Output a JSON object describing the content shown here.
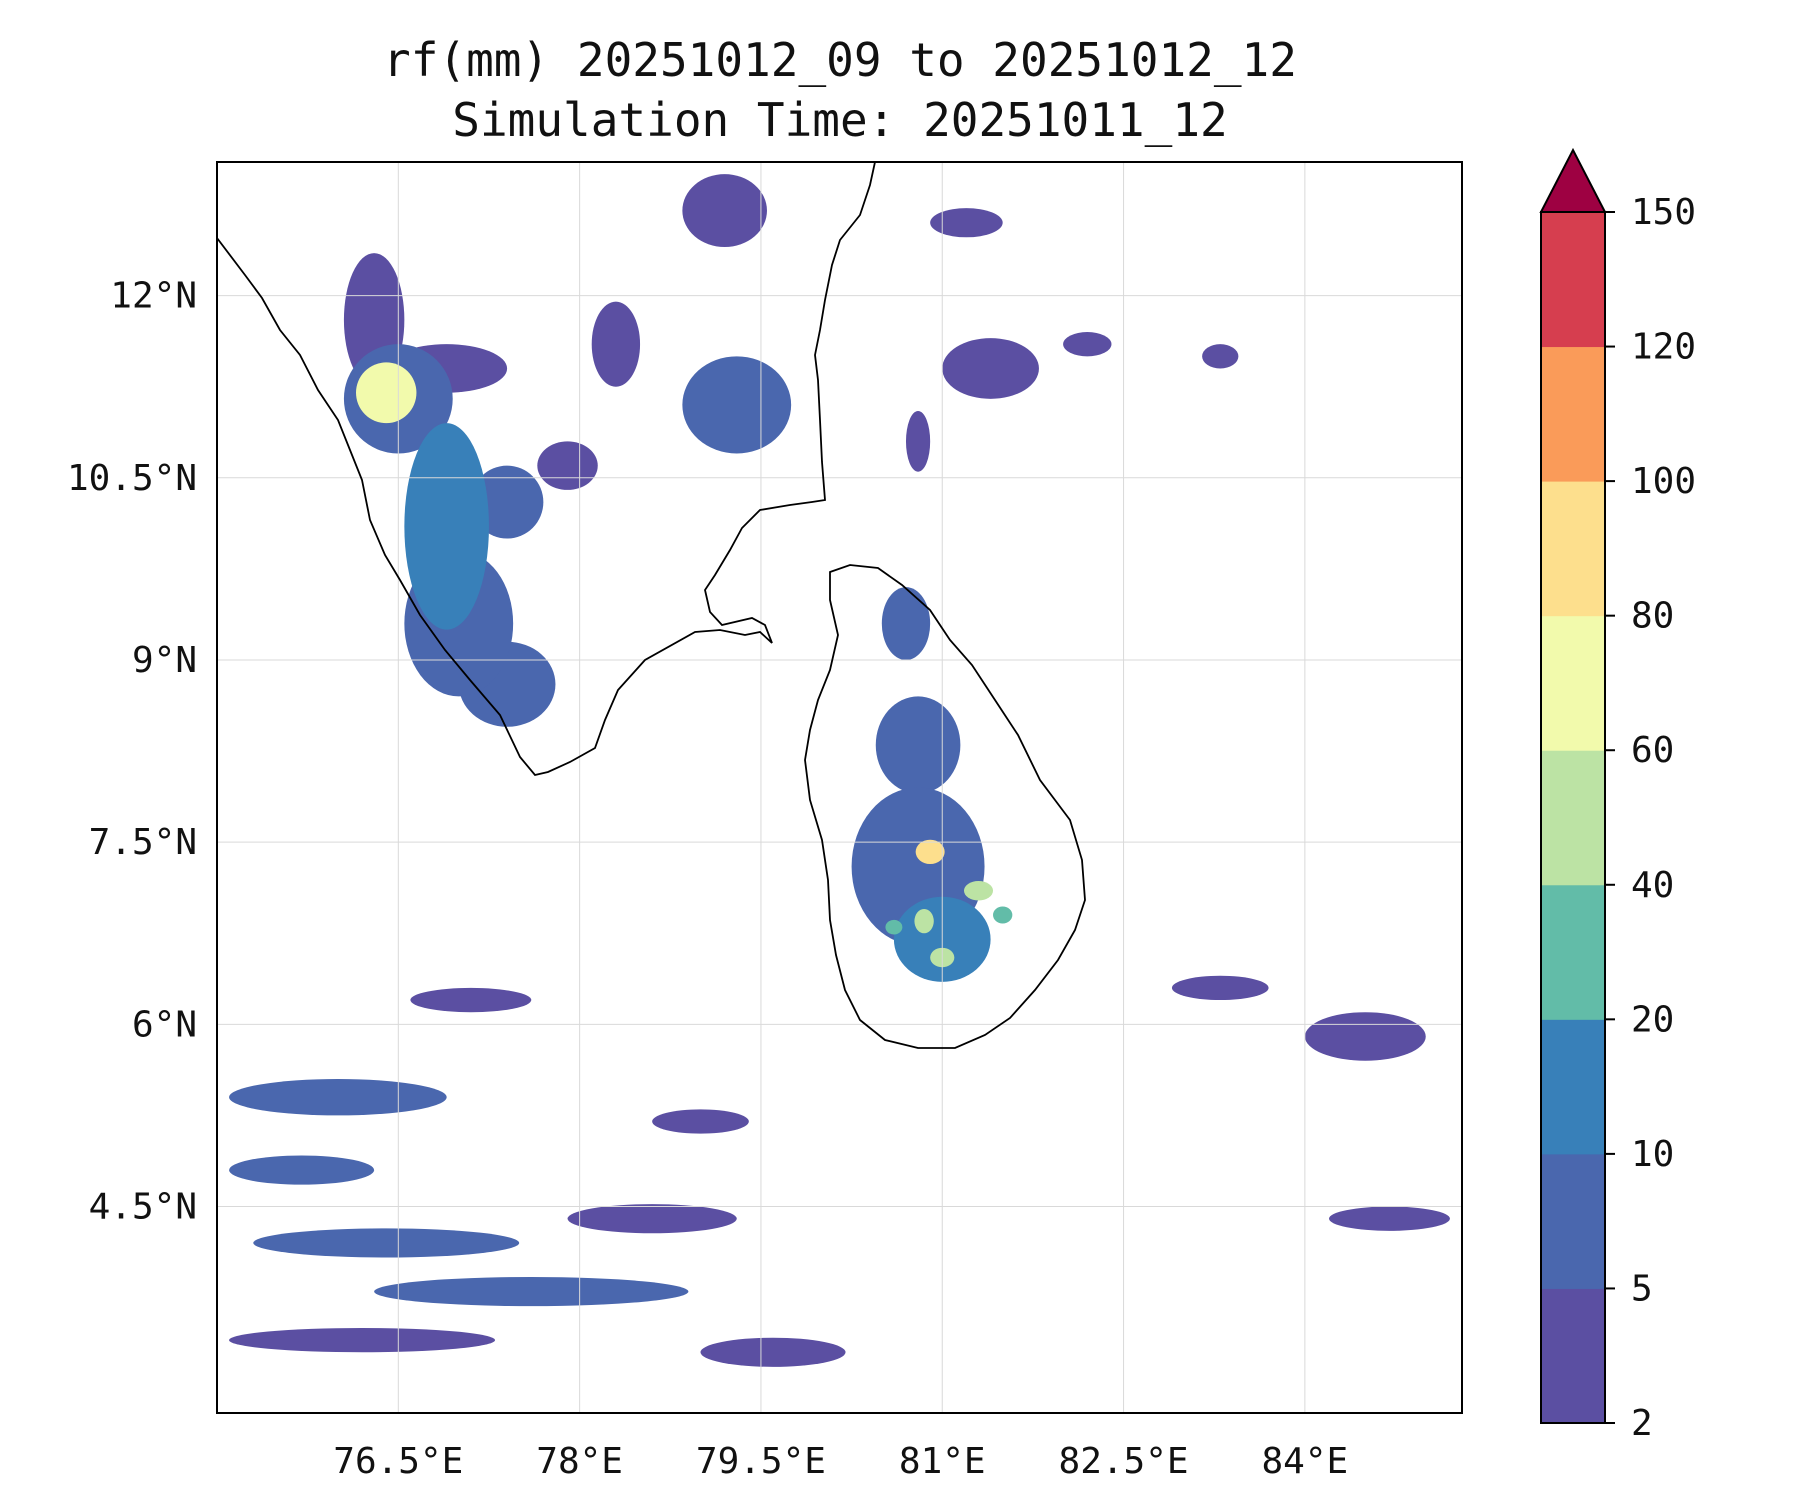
{
  "title": {
    "line1": "rf(mm) 20251012_09 to 20251012_12",
    "line2": "Simulation Time: 20251011_12"
  },
  "chart_data": {
    "type": "heatmap",
    "variable": "rf(mm)",
    "lon_range": [
      75.0,
      85.3
    ],
    "lat_range": [
      2.8,
      13.1
    ],
    "grid": true,
    "x_ticks": [
      {
        "value": 76.5,
        "label": "76.5°E"
      },
      {
        "value": 78.0,
        "label": "78°E"
      },
      {
        "value": 79.5,
        "label": "79.5°E"
      },
      {
        "value": 81.0,
        "label": "81°E"
      },
      {
        "value": 82.5,
        "label": "82.5°E"
      },
      {
        "value": 84.0,
        "label": "84°E"
      }
    ],
    "y_ticks": [
      {
        "value": 12.0,
        "label": "12°N"
      },
      {
        "value": 10.5,
        "label": "10.5°N"
      },
      {
        "value": 9.0,
        "label": "9°N"
      },
      {
        "value": 7.5,
        "label": "7.5°N"
      },
      {
        "value": 6.0,
        "label": "6°N"
      },
      {
        "value": 4.5,
        "label": "4.5°N"
      }
    ],
    "colorbar": {
      "levels": [
        2,
        5,
        10,
        20,
        40,
        60,
        80,
        100,
        120,
        150
      ],
      "labels": [
        "2",
        "5",
        "10",
        "20",
        "40",
        "60",
        "80",
        "100",
        "120",
        "150"
      ],
      "colors": [
        "#5b4fa2",
        "#4a67ae",
        "#3880b9",
        "#62bca8",
        "#bce3a4",
        "#f2faac",
        "#fddf8d",
        "#fa9b59",
        "#d63e4f"
      ],
      "extend_color": "#9e0142",
      "extend": "max"
    },
    "rain_cells": [
      {
        "lon": 76.3,
        "lat": 11.8,
        "rx": 0.25,
        "ry": 0.55,
        "value": 4
      },
      {
        "lon": 76.4,
        "lat": 11.2,
        "rx": 0.25,
        "ry": 0.25,
        "value": 60
      },
      {
        "lon": 76.5,
        "lat": 11.15,
        "rx": 0.45,
        "ry": 0.45,
        "value": 6
      },
      {
        "lon": 76.9,
        "lat": 11.4,
        "rx": 0.5,
        "ry": 0.2,
        "value": 3
      },
      {
        "lon": 76.9,
        "lat": 10.1,
        "rx": 0.35,
        "ry": 0.85,
        "value": 12
      },
      {
        "lon": 77.0,
        "lat": 9.3,
        "rx": 0.45,
        "ry": 0.6,
        "value": 8
      },
      {
        "lon": 77.4,
        "lat": 8.8,
        "rx": 0.4,
        "ry": 0.35,
        "value": 6
      },
      {
        "lon": 77.4,
        "lat": 10.3,
        "rx": 0.3,
        "ry": 0.3,
        "value": 5
      },
      {
        "lon": 77.9,
        "lat": 10.6,
        "rx": 0.25,
        "ry": 0.2,
        "value": 4
      },
      {
        "lon": 78.3,
        "lat": 11.6,
        "rx": 0.2,
        "ry": 0.35,
        "value": 3
      },
      {
        "lon": 79.3,
        "lat": 11.1,
        "rx": 0.45,
        "ry": 0.4,
        "value": 5
      },
      {
        "lon": 79.2,
        "lat": 12.7,
        "rx": 0.35,
        "ry": 0.3,
        "value": 4
      },
      {
        "lon": 81.2,
        "lat": 12.6,
        "rx": 0.3,
        "ry": 0.12,
        "value": 3
      },
      {
        "lon": 81.4,
        "lat": 11.4,
        "rx": 0.4,
        "ry": 0.25,
        "value": 4
      },
      {
        "lon": 80.8,
        "lat": 10.8,
        "rx": 0.1,
        "ry": 0.25,
        "value": 3
      },
      {
        "lon": 82.2,
        "lat": 11.6,
        "rx": 0.2,
        "ry": 0.1,
        "value": 3
      },
      {
        "lon": 83.3,
        "lat": 11.5,
        "rx": 0.15,
        "ry": 0.1,
        "value": 3
      },
      {
        "lon": 80.7,
        "lat": 9.3,
        "rx": 0.2,
        "ry": 0.3,
        "value": 5
      },
      {
        "lon": 80.8,
        "lat": 8.3,
        "rx": 0.35,
        "ry": 0.4,
        "value": 5
      },
      {
        "lon": 80.8,
        "lat": 7.3,
        "rx": 0.55,
        "ry": 0.65,
        "value": 8
      },
      {
        "lon": 80.9,
        "lat": 7.42,
        "rx": 0.12,
        "ry": 0.1,
        "value": 90
      },
      {
        "lon": 81.3,
        "lat": 7.1,
        "rx": 0.12,
        "ry": 0.08,
        "value": 40
      },
      {
        "lon": 80.85,
        "lat": 6.85,
        "rx": 0.08,
        "ry": 0.1,
        "value": 40
      },
      {
        "lon": 81.0,
        "lat": 6.55,
        "rx": 0.1,
        "ry": 0.08,
        "value": 40
      },
      {
        "lon": 81.5,
        "lat": 6.9,
        "rx": 0.08,
        "ry": 0.07,
        "value": 25
      },
      {
        "lon": 80.6,
        "lat": 6.8,
        "rx": 0.07,
        "ry": 0.06,
        "value": 25
      },
      {
        "lon": 81.0,
        "lat": 6.7,
        "rx": 0.4,
        "ry": 0.35,
        "value": 12
      },
      {
        "lon": 76.0,
        "lat": 5.4,
        "rx": 0.9,
        "ry": 0.15,
        "value": 5
      },
      {
        "lon": 75.7,
        "lat": 4.8,
        "rx": 0.6,
        "ry": 0.12,
        "value": 8
      },
      {
        "lon": 76.4,
        "lat": 4.2,
        "rx": 1.1,
        "ry": 0.12,
        "value": 5
      },
      {
        "lon": 77.6,
        "lat": 3.8,
        "rx": 1.3,
        "ry": 0.12,
        "value": 5
      },
      {
        "lon": 76.2,
        "lat": 3.4,
        "rx": 1.1,
        "ry": 0.1,
        "value": 4
      },
      {
        "lon": 78.6,
        "lat": 4.4,
        "rx": 0.7,
        "ry": 0.12,
        "value": 4
      },
      {
        "lon": 79.6,
        "lat": 3.3,
        "rx": 0.6,
        "ry": 0.12,
        "value": 4
      },
      {
        "lon": 77.1,
        "lat": 6.2,
        "rx": 0.5,
        "ry": 0.1,
        "value": 3
      },
      {
        "lon": 79.0,
        "lat": 5.2,
        "rx": 0.4,
        "ry": 0.1,
        "value": 3
      },
      {
        "lon": 84.5,
        "lat": 5.9,
        "rx": 0.5,
        "ry": 0.2,
        "value": 4
      },
      {
        "lon": 83.3,
        "lat": 6.3,
        "rx": 0.4,
        "ry": 0.1,
        "value": 3
      },
      {
        "lon": 84.7,
        "lat": 4.4,
        "rx": 0.5,
        "ry": 0.1,
        "value": 3
      }
    ]
  }
}
